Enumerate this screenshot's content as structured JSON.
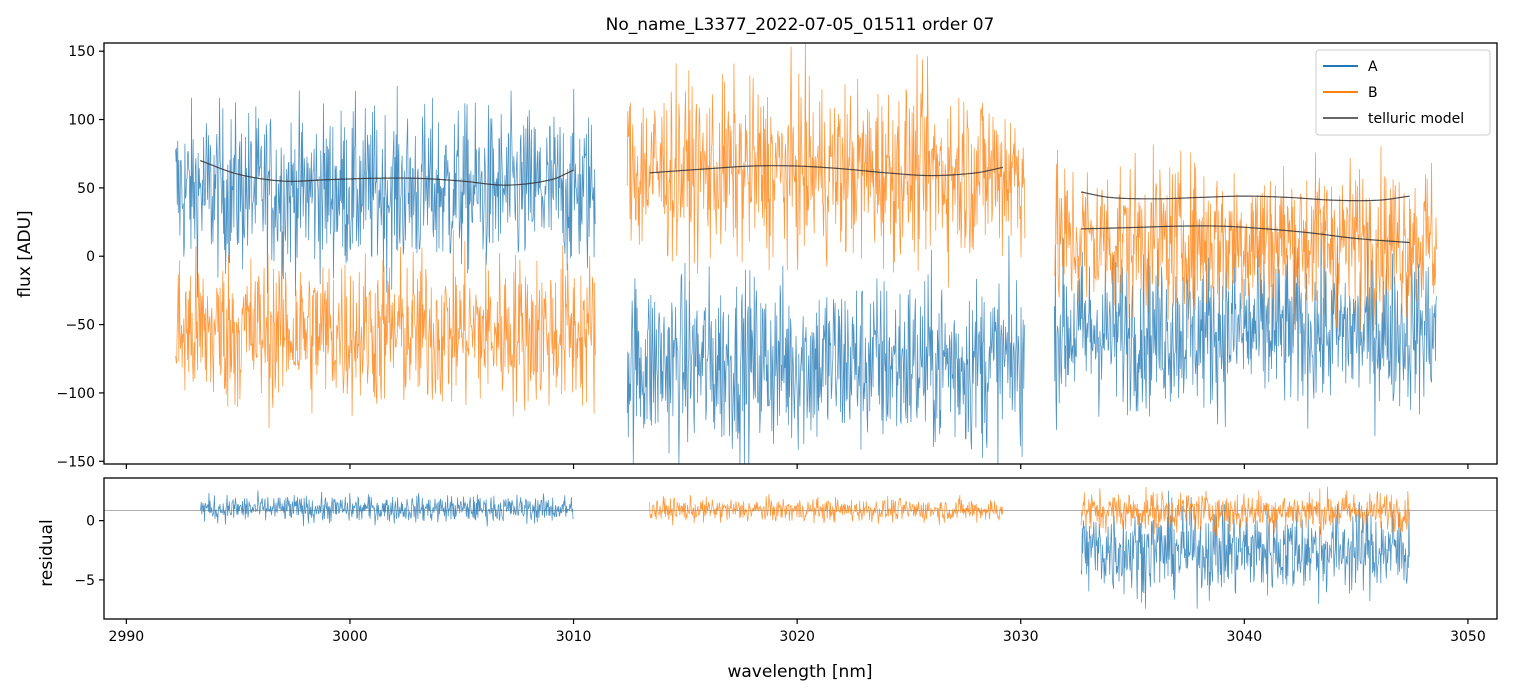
{
  "chart_data": {
    "type": "line",
    "title": "No_name_L3377_2022-07-05_01511  order 07",
    "xlabel": "wavelength [nm]",
    "xlim": [
      2989,
      3051.3
    ],
    "xticks": [
      2990,
      3000,
      3010,
      3020,
      3030,
      3040,
      3050
    ],
    "legend": {
      "location": "top-right",
      "entries": [
        {
          "label": "A",
          "color": "#1f77b4"
        },
        {
          "label": "B",
          "color": "#ff7f0e"
        },
        {
          "label": "telluric model",
          "color": "#333333"
        }
      ]
    },
    "panels": [
      {
        "name": "flux",
        "ylabel": "flux [ADU]",
        "ylim": [
          -152,
          156
        ],
        "yticks": [
          -150,
          -100,
          -50,
          0,
          50,
          100,
          150
        ],
        "series": [
          {
            "name": "A",
            "color": "#1f77b4",
            "style": "noisy",
            "segments": [
              {
                "x_start": 2992.2,
                "x_end": 3011.0,
                "mean": 48,
                "noise": 42
              },
              {
                "x_start": 3012.4,
                "x_end": 3030.2,
                "mean": -78,
                "noise": 45
              },
              {
                "x_start": 3031.5,
                "x_end": 3048.6,
                "mean": -55,
                "noise": 40
              }
            ]
          },
          {
            "name": "B",
            "color": "#ff7f0e",
            "style": "noisy",
            "segments": [
              {
                "x_start": 2992.2,
                "x_end": 3011.0,
                "mean": -55,
                "noise": 40
              },
              {
                "x_start": 3012.4,
                "x_end": 3030.2,
                "mean": 62,
                "noise": 45
              },
              {
                "x_start": 3031.5,
                "x_end": 3048.6,
                "mean": 12,
                "noise": 40
              }
            ]
          },
          {
            "name": "telluric model",
            "color": "#333333",
            "style": "smooth",
            "segments": [
              {
                "x": [
                  2993.3,
                  2995,
                  2997,
                  2999,
                  3001,
                  3003,
                  3005,
                  3007,
                  3009,
                  3010
                ],
                "y": [
                  70,
                  60,
                  55,
                  56,
                  57,
                  57,
                  55,
                  52,
                  56,
                  63
                ]
              },
              {
                "x": [
                  3013.4,
                  3016,
                  3018,
                  3020,
                  3022,
                  3024,
                  3026,
                  3028,
                  3029.2
                ],
                "y": [
                  61,
                  64,
                  66,
                  66,
                  64,
                  61,
                  59,
                  61,
                  65
                ]
              },
              {
                "x": [
                  3032.7,
                  3034,
                  3036,
                  3038,
                  3040,
                  3042,
                  3044,
                  3046,
                  3047.4
                ],
                "y": [
                  47,
                  43,
                  42,
                  43,
                  44,
                  43,
                  41,
                  41,
                  44
                ]
              },
              {
                "x": [
                  3032.7,
                  3035,
                  3037,
                  3039,
                  3041,
                  3043,
                  3045,
                  3047.4
                ],
                "y": [
                  20,
                  21,
                  22,
                  22,
                  20,
                  17,
                  13,
                  10
                ]
              }
            ]
          }
        ]
      },
      {
        "name": "residual",
        "ylabel": "residual",
        "ylim": [
          -8.3,
          3.6
        ],
        "yticks": [
          -5,
          0
        ],
        "hline": 0.85,
        "series": [
          {
            "name": "A",
            "color": "#1f77b4",
            "style": "noisy",
            "segments": [
              {
                "x_start": 2993.3,
                "x_end": 3010.0,
                "mean": 1.0,
                "noise": 0.8
              },
              {
                "x_start": 3032.7,
                "x_end": 3047.4,
                "mean": -2.5,
                "noise": 2.6
              }
            ]
          },
          {
            "name": "B",
            "color": "#ff7f0e",
            "style": "noisy",
            "segments": [
              {
                "x_start": 3013.4,
                "x_end": 3029.2,
                "mean": 0.9,
                "noise": 0.7
              },
              {
                "x_start": 3032.7,
                "x_end": 3047.4,
                "mean": 0.8,
                "noise": 1.2
              }
            ]
          }
        ]
      }
    ]
  }
}
